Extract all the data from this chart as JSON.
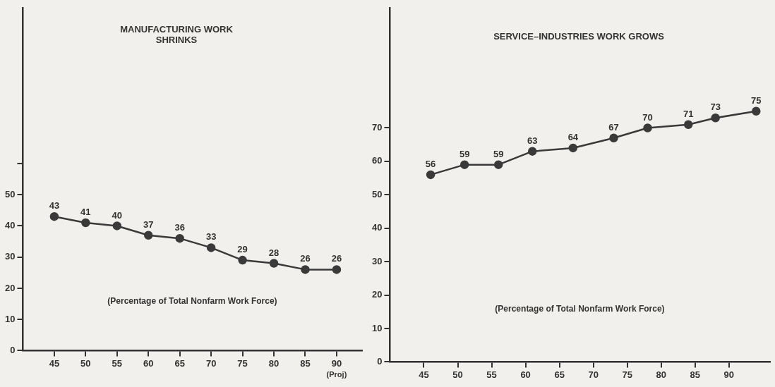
{
  "chart_data": [
    {
      "type": "line",
      "title": "MANUFACTURING WORK SHRINKS",
      "x": [
        45,
        50,
        55,
        60,
        65,
        70,
        75,
        80,
        85,
        90
      ],
      "series": [
        {
          "color": "#3a3a3a",
          "values": [
            43,
            41,
            40,
            37,
            36,
            33,
            29,
            28,
            26,
            26
          ]
        }
      ],
      "xlim": [
        40,
        94
      ],
      "xticks": [
        45,
        50,
        55,
        60,
        65,
        70,
        75,
        80,
        85,
        90
      ],
      "ylim": [
        0,
        110
      ],
      "yticks": [
        0,
        10,
        20,
        30,
        40,
        50,
        {
          "value": 60,
          "label": null
        }
      ],
      "marker": "circle",
      "data_labels": true,
      "annotations": [
        "(Percentage of Total Nonfarm Work Force)",
        "(Proj)"
      ]
    },
    {
      "type": "line",
      "title": "SERVICE–INDUSTRIES WORK GROWS",
      "x": [
        46,
        51,
        56,
        61,
        67,
        73,
        78,
        84,
        88,
        94
      ],
      "series": [
        {
          "color": "#3a3a3a",
          "values": [
            56,
            59,
            59,
            63,
            64,
            67,
            70,
            71,
            73,
            75
          ]
        }
      ],
      "xlim": [
        40,
        96
      ],
      "xticks": [
        45,
        50,
        55,
        60,
        65,
        70,
        75,
        80,
        85,
        90
      ],
      "ylim": [
        0,
        106
      ],
      "yticks": [
        0,
        10,
        20,
        30,
        40,
        50,
        60,
        70
      ],
      "marker": "circle",
      "data_labels": true,
      "annotations": [
        "(Percentage of Total Nonfarm Work Force)"
      ]
    }
  ]
}
